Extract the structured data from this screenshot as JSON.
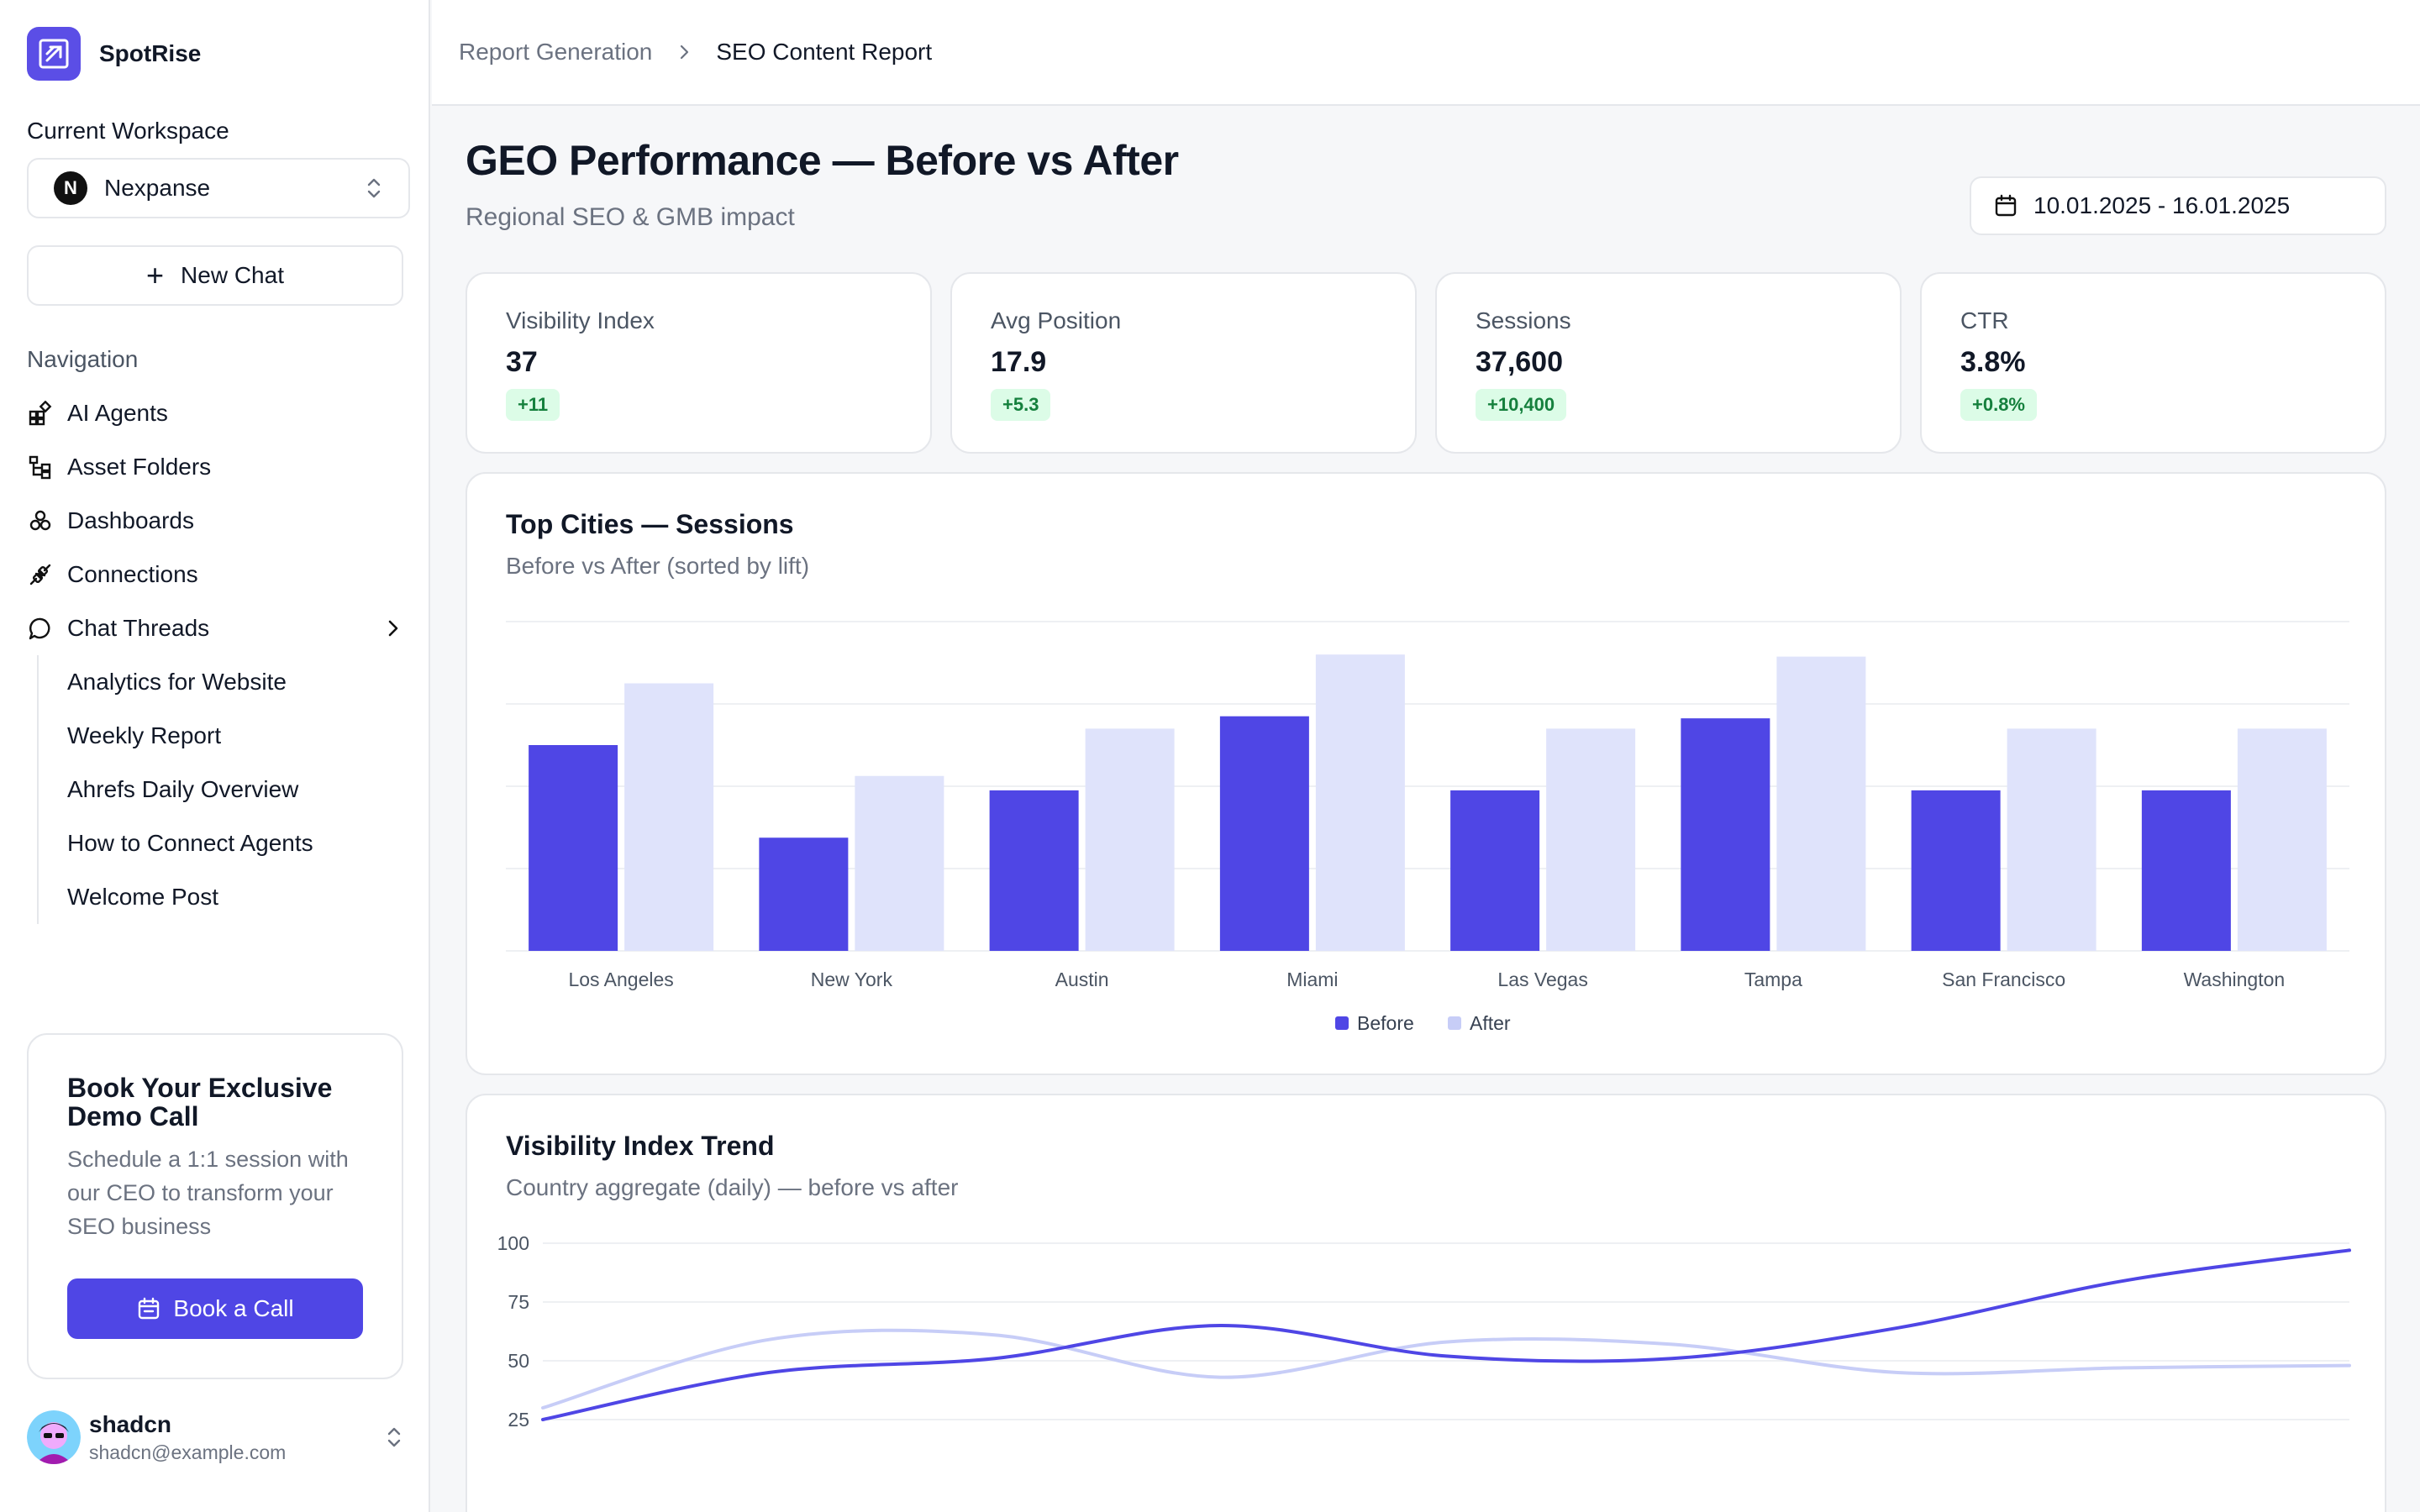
{
  "app": {
    "name": "SpotRise"
  },
  "workspace": {
    "label": "Current Workspace",
    "name": "Nexpanse",
    "initial": "N"
  },
  "new_chat": {
    "label": "New Chat"
  },
  "navigation": {
    "label": "Navigation",
    "items": [
      {
        "label": "AI Agents",
        "icon": "agents-icon"
      },
      {
        "label": "Asset Folders",
        "icon": "folder-tree-icon"
      },
      {
        "label": "Dashboards",
        "icon": "dashboards-icon"
      },
      {
        "label": "Connections",
        "icon": "plug-icon"
      },
      {
        "label": "Chat Threads",
        "icon": "chat-icon"
      }
    ],
    "threads": [
      "Analytics for Website",
      "Weekly Report",
      "Ahrefs Daily Overview",
      "How to Connect Agents",
      "Welcome Post"
    ]
  },
  "promo": {
    "title": "Book Your Exclusive Demo Call",
    "text": "Schedule a 1:1 session with our CEO to transform your SEO business",
    "button": "Book a Call"
  },
  "user": {
    "name": "shadcn",
    "email": "shadcn@example.com"
  },
  "breadcrumb": {
    "parent": "Report Generation",
    "current": "SEO Content Report"
  },
  "page": {
    "title": "GEO Performance — Before vs After",
    "subtitle": "Regional SEO & GMB impact",
    "date_range": "10.01.2025 - 16.01.2025"
  },
  "kpis": [
    {
      "label": "Visibility Index",
      "value": "37",
      "delta": "+11"
    },
    {
      "label": "Avg Position",
      "value": "17.9",
      "delta": "+5.3"
    },
    {
      "label": "Sessions",
      "value": "37,600",
      "delta": "+10,400"
    },
    {
      "label": "CTR",
      "value": "3.8%",
      "delta": "+0.8%"
    }
  ],
  "colors": {
    "accent": "#4f46e5",
    "before": "#4f46e5",
    "after": "#dfe3fb",
    "after_line": "#c7cdf7",
    "delta_bg": "#dcfce7",
    "delta_text": "#15803d"
  },
  "chart_data": [
    {
      "type": "bar",
      "title": "Top Cities — Sessions",
      "subtitle": "Before vs After (sorted by lift)",
      "categories": [
        "Los Angeles",
        "New York",
        "Austin",
        "Miami",
        "Las Vegas",
        "Tampa",
        "San Francisco",
        "Washington"
      ],
      "series": [
        {
          "name": "Before",
          "values": [
            5000,
            2750,
            3900,
            5700,
            3900,
            5650,
            3900,
            3900
          ]
        },
        {
          "name": "After",
          "values": [
            6500,
            4250,
            5400,
            7200,
            5400,
            7150,
            5400,
            5400
          ]
        }
      ],
      "ylim": [
        0,
        8000
      ],
      "grid": true,
      "legend": "bottom-center"
    },
    {
      "type": "line",
      "title": "Visibility Index Trend",
      "subtitle": "Country aggregate (daily) — before vs after",
      "yticks": [
        100,
        75,
        50,
        25
      ],
      "ylim": [
        25,
        100
      ],
      "series": [
        {
          "name": "Before",
          "values": [
            25,
            45,
            51,
            65,
            52,
            51,
            64,
            84,
            97
          ]
        },
        {
          "name": "After",
          "values": [
            30,
            59,
            61,
            43,
            58,
            57,
            45,
            47,
            48
          ]
        }
      ],
      "grid": true
    }
  ]
}
